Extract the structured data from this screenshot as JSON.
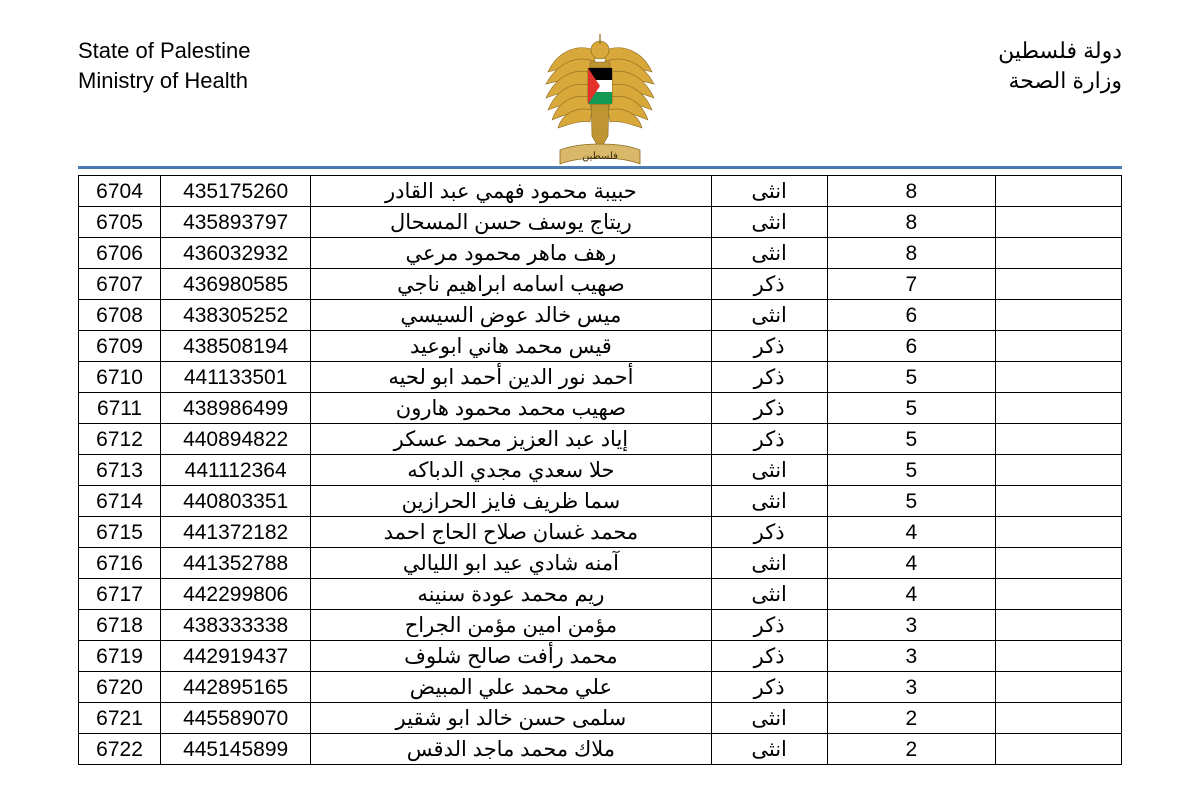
{
  "header": {
    "left_line1": "State of Palestine",
    "left_line2": "Ministry of Health",
    "right_line1": "دولة فلسطين",
    "right_line2": "وزارة الصحة"
  },
  "emblem": {
    "wing_color": "#d8a93a",
    "body_color": "#bf9433",
    "flag_black": "#000000",
    "flag_white": "#ffffff",
    "flag_green": "#149954",
    "flag_red": "#e4312b",
    "ribbon_fill": "#d9b86a",
    "ribbon_text": "فلسطين"
  },
  "divider_color": "#4a7bb5",
  "table": {
    "columns": [
      "index",
      "id_number",
      "full_name_ar",
      "gender_ar",
      "age",
      "blank"
    ],
    "rows": [
      {
        "index": "6704",
        "id": "435175260",
        "name": "حبيبة محمود فهمي عبد القادر",
        "gender": "انثى",
        "age": "8"
      },
      {
        "index": "6705",
        "id": "435893797",
        "name": "ريتاج يوسف حسن المسحال",
        "gender": "انثى",
        "age": "8"
      },
      {
        "index": "6706",
        "id": "436032932",
        "name": "رهف ماهر محمود مرعي",
        "gender": "انثى",
        "age": "8"
      },
      {
        "index": "6707",
        "id": "436980585",
        "name": "صهيب اسامه ابراهيم ناجي",
        "gender": "ذكر",
        "age": "7"
      },
      {
        "index": "6708",
        "id": "438305252",
        "name": "ميس خالد عوض السيسي",
        "gender": "انثى",
        "age": "6"
      },
      {
        "index": "6709",
        "id": "438508194",
        "name": "قيس محمد هاني ابوعيد",
        "gender": "ذكر",
        "age": "6"
      },
      {
        "index": "6710",
        "id": "441133501",
        "name": "أحمد نور الدين أحمد ابو لحيه",
        "gender": "ذكر",
        "age": "5"
      },
      {
        "index": "6711",
        "id": "438986499",
        "name": "صهيب محمد محمود هارون",
        "gender": "ذكر",
        "age": "5"
      },
      {
        "index": "6712",
        "id": "440894822",
        "name": "إياد عبد العزيز محمد عسكر",
        "gender": "ذكر",
        "age": "5"
      },
      {
        "index": "6713",
        "id": "441112364",
        "name": "حلا سعدي مجدي الدباكه",
        "gender": "انثى",
        "age": "5"
      },
      {
        "index": "6714",
        "id": "440803351",
        "name": "سما ظريف فايز الحرازين",
        "gender": "انثى",
        "age": "5"
      },
      {
        "index": "6715",
        "id": "441372182",
        "name": "محمد غسان صلاح الحاج احمد",
        "gender": "ذكر",
        "age": "4"
      },
      {
        "index": "6716",
        "id": "441352788",
        "name": "آمنه شادي عيد ابو الليالي",
        "gender": "انثى",
        "age": "4"
      },
      {
        "index": "6717",
        "id": "442299806",
        "name": "ريم محمد عودة سنينه",
        "gender": "انثى",
        "age": "4"
      },
      {
        "index": "6718",
        "id": "438333338",
        "name": "مؤمن امين مؤمن الجراح",
        "gender": "ذكر",
        "age": "3"
      },
      {
        "index": "6719",
        "id": "442919437",
        "name": "محمد رأفت صالح شلوف",
        "gender": "ذكر",
        "age": "3"
      },
      {
        "index": "6720",
        "id": "442895165",
        "name": "علي محمد علي المبيض",
        "gender": "ذكر",
        "age": "3"
      },
      {
        "index": "6721",
        "id": "445589070",
        "name": "سلمى حسن خالد ابو شقير",
        "gender": "انثى",
        "age": "2"
      },
      {
        "index": "6722",
        "id": "445145899",
        "name": "ملاك محمد ماجد الدقس",
        "gender": "انثى",
        "age": "2"
      }
    ]
  }
}
